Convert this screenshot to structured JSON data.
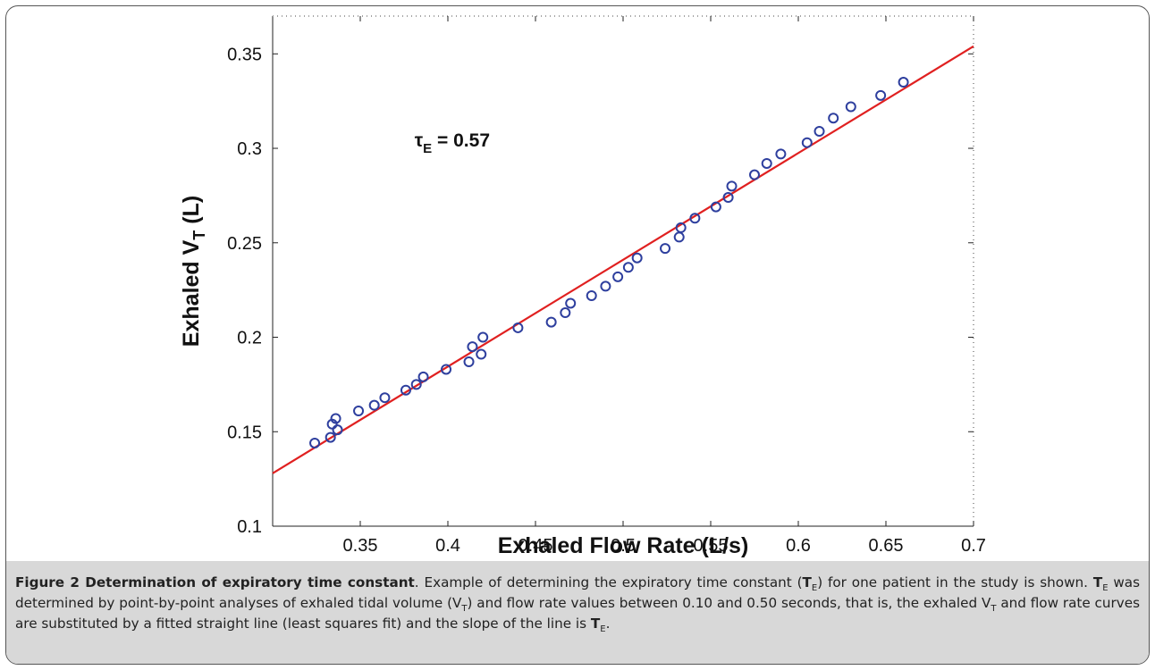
{
  "chart_data": {
    "type": "scatter",
    "xlabel": "Exhaled Flow Rate (L/s)",
    "ylabel_main": "Exhaled V",
    "ylabel_sub": "T",
    "ylabel_unit": " (L)",
    "annotation": {
      "symbol": "τ",
      "sub": "E",
      "text": " = 0.57",
      "x": 0.38,
      "y": 0.3
    },
    "xlim": [
      0.3,
      0.7
    ],
    "ylim": [
      0.1,
      0.37
    ],
    "xticks": [
      "0.35",
      "0.4",
      "0.45",
      "0.5",
      "0.55",
      "0.6",
      "0.65",
      "0.7"
    ],
    "yticks": [
      "0.1",
      "0.15",
      "0.2",
      "0.25",
      "0.3",
      "0.35"
    ],
    "grid": false,
    "colors": {
      "points": "#2e3f9e",
      "fit_line": "#e02020"
    },
    "fit_line": {
      "x": [
        0.3,
        0.7
      ],
      "y": [
        0.128,
        0.354
      ]
    },
    "points": {
      "x": [
        0.324,
        0.333,
        0.334,
        0.336,
        0.337,
        0.349,
        0.358,
        0.364,
        0.376,
        0.382,
        0.386,
        0.399,
        0.412,
        0.414,
        0.419,
        0.42,
        0.44,
        0.459,
        0.467,
        0.47,
        0.482,
        0.49,
        0.497,
        0.503,
        0.508,
        0.524,
        0.532,
        0.533,
        0.541,
        0.553,
        0.56,
        0.562,
        0.575,
        0.582,
        0.59,
        0.605,
        0.612,
        0.62,
        0.63,
        0.647,
        0.66
      ],
      "y": [
        0.144,
        0.147,
        0.154,
        0.157,
        0.151,
        0.161,
        0.164,
        0.168,
        0.172,
        0.175,
        0.179,
        0.183,
        0.187,
        0.195,
        0.191,
        0.2,
        0.205,
        0.208,
        0.213,
        0.218,
        0.222,
        0.227,
        0.232,
        0.237,
        0.242,
        0.247,
        0.253,
        0.258,
        0.263,
        0.269,
        0.274,
        0.28,
        0.286,
        0.292,
        0.297,
        0.303,
        0.309,
        0.316,
        0.322,
        0.328,
        0.335
      ]
    }
  },
  "caption": {
    "title": "Figure 2 Determination of expiratory time constant",
    "parts": [
      {
        "t": ". Example of determining the expiratory time constant ("
      },
      {
        "t": "T",
        "b": true
      },
      {
        "t": "E",
        "sub": true
      },
      {
        "t": ") for one patient in the study is shown. "
      },
      {
        "t": "T",
        "b": true
      },
      {
        "t": "E",
        "sub": true
      },
      {
        "t": " was determined by point-by-point analyses of exhaled tidal volume (V"
      },
      {
        "t": "T",
        "sub": true
      },
      {
        "t": ") and flow rate values between 0.10 and 0.50 seconds, that is, the exhaled V"
      },
      {
        "t": "T",
        "sub": true
      },
      {
        "t": " and flow rate curves are substituted by a fitted straight line (least squares fit) and the slope of the line is "
      },
      {
        "t": "T",
        "b": true
      },
      {
        "t": "E",
        "sub": true
      },
      {
        "t": "."
      }
    ]
  }
}
